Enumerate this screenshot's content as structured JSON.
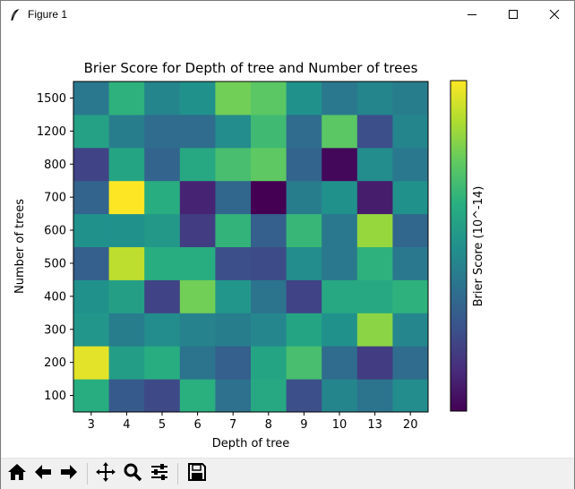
{
  "window": {
    "title": "Figure 1",
    "app_icon": "feather-icon",
    "controls": [
      "minimize-icon",
      "maximize-icon",
      "close-icon"
    ]
  },
  "toolbar": {
    "buttons": [
      "home-icon",
      "back-arrow-icon",
      "forward-arrow-icon",
      "pan-icon",
      "zoom-icon",
      "configure-subplots-icon",
      "save-icon"
    ]
  },
  "chart_data": {
    "type": "heatmap",
    "title": "Brier Score for Depth of tree and Number of trees",
    "xlabel": "Depth of tree",
    "ylabel": "Number of trees",
    "x_categories": [
      "3",
      "4",
      "5",
      "6",
      "7",
      "8",
      "9",
      "10",
      "13",
      "20"
    ],
    "y_categories": [
      "100",
      "200",
      "300",
      "400",
      "500",
      "600",
      "700",
      "800",
      "1200",
      "1500"
    ],
    "colorbar_label": "Brier Score (10^-14)",
    "colormap": "viridis",
    "value_range": [
      0,
      1
    ],
    "colorbar_ticks": [],
    "values": [
      [
        0.62,
        0.28,
        0.22,
        0.63,
        0.37,
        0.6,
        0.24,
        0.45,
        0.38,
        0.48
      ],
      [
        0.96,
        0.55,
        0.62,
        0.38,
        0.3,
        0.58,
        0.7,
        0.35,
        0.18,
        0.35
      ],
      [
        0.52,
        0.42,
        0.48,
        0.44,
        0.42,
        0.46,
        0.58,
        0.5,
        0.82,
        0.46
      ],
      [
        0.5,
        0.56,
        0.2,
        0.78,
        0.52,
        0.38,
        0.2,
        0.6,
        0.6,
        0.64
      ],
      [
        0.3,
        0.9,
        0.62,
        0.62,
        0.24,
        0.23,
        0.48,
        0.4,
        0.64,
        0.4
      ],
      [
        0.5,
        0.5,
        0.53,
        0.18,
        0.65,
        0.3,
        0.66,
        0.4,
        0.84,
        0.33
      ],
      [
        0.32,
        1.0,
        0.62,
        0.1,
        0.33,
        0.0,
        0.42,
        0.5,
        0.08,
        0.5
      ],
      [
        0.2,
        0.58,
        0.32,
        0.6,
        0.7,
        0.75,
        0.32,
        0.02,
        0.48,
        0.4
      ],
      [
        0.57,
        0.42,
        0.35,
        0.35,
        0.48,
        0.68,
        0.35,
        0.74,
        0.24,
        0.45
      ],
      [
        0.4,
        0.64,
        0.45,
        0.5,
        0.78,
        0.74,
        0.5,
        0.4,
        0.45,
        0.42
      ]
    ]
  }
}
